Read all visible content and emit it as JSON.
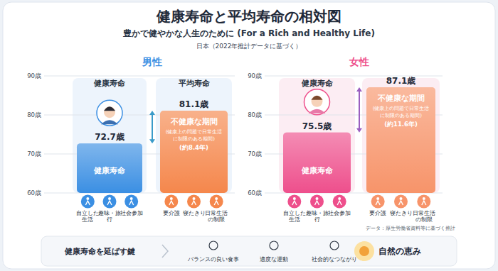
{
  "header": {
    "title": "健康寿命と平均寿命の相対図",
    "subtitle": "豊かで健やかな人生のために (For a Rich and Healthy Life)",
    "note": "日本（2022年推計データに基づく）"
  },
  "chart_data": [
    {
      "type": "bar",
      "title": "男性",
      "categories": [
        "健康寿命",
        "平均寿命"
      ],
      "values": [
        72.7,
        81.1
      ],
      "value_labels": [
        "72.7歳",
        "81.1歳"
      ],
      "colors": [
        "#3b8fe3",
        "#f5874c"
      ],
      "ylim": [
        60,
        90
      ],
      "yticks": [
        {
          "value": 60,
          "label": "60歳"
        },
        {
          "value": 70,
          "label": "70歳"
        },
        {
          "value": 80,
          "label": "80歳"
        },
        {
          "value": 90,
          "label": "90歳"
        }
      ],
      "grid": true,
      "data_labels": true,
      "bar_label": "健康寿命",
      "annotation": {
        "title": "不健康な期間",
        "note": "(健康上の問題で日常生活に制限のある期間)",
        "value": 8.4,
        "label": "(約8.4年)"
      },
      "icons": [
        [
          "自立した生活",
          "趣味・旅行",
          "社会参加"
        ],
        [
          "要介護",
          "寝たきり",
          "日常生活の制限"
        ]
      ]
    },
    {
      "type": "bar",
      "title": "女性",
      "categories": [
        "健康寿命",
        null
      ],
      "values": [
        75.5,
        87.1
      ],
      "value_labels": [
        "75.5歳",
        "87.1歳"
      ],
      "colors": [
        "#ee4f8c",
        "#f7946a"
      ],
      "ylim": [
        60,
        90
      ],
      "yticks": [
        {
          "value": 60,
          "label": "60歳"
        },
        {
          "value": 70,
          "label": "70歳"
        },
        {
          "value": 80,
          "label": "80歳"
        },
        {
          "value": 90,
          "label": "90歳"
        }
      ],
      "grid": true,
      "data_labels": true,
      "bar_label": "健康寿命",
      "annotation": {
        "title": "不健康な期間",
        "note": "(健康上の問題で日常生活に制限のある期間)",
        "value": 11.6,
        "label": "(約11.6年)"
      },
      "icons": [
        [
          "自立した生活",
          "趣味・旅行",
          "社会参加"
        ],
        [
          "要介護",
          "寝たきり",
          "日常生活の制限"
        ]
      ]
    }
  ],
  "footer": {
    "source": "データ：厚生労働省資料等に基づく推計",
    "keys_title": "健康寿命を延ばす鍵",
    "keys": [
      "バランスの良い食事",
      "適度な運動",
      "社会的なつながり"
    ],
    "highlight": "自然の恵み"
  }
}
